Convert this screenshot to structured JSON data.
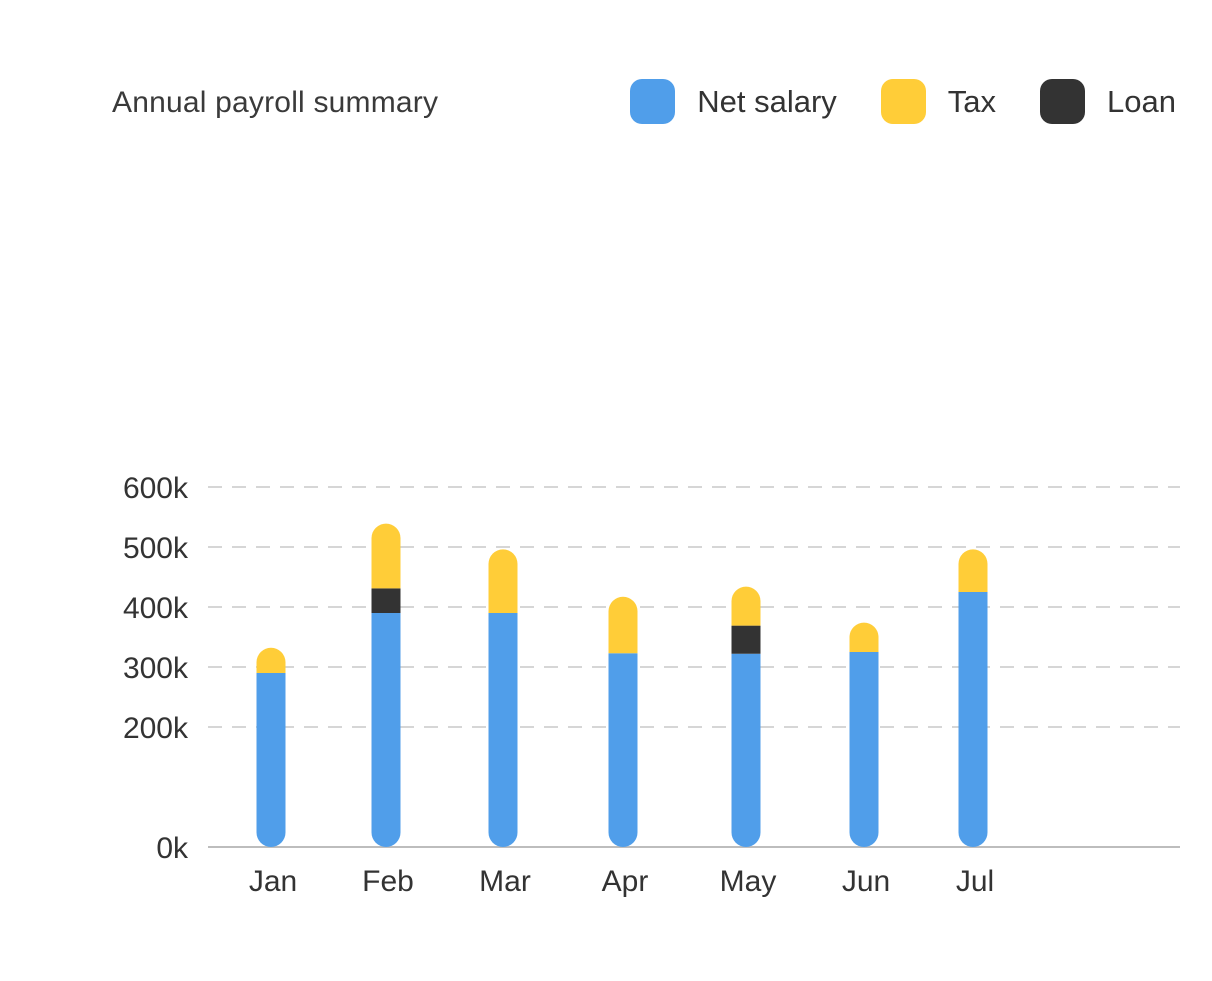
{
  "chart_data": {
    "type": "bar",
    "stacked": true,
    "title": "Annual payroll summary",
    "categories": [
      "Jan",
      "Feb",
      "Mar",
      "Apr",
      "May",
      "Jun",
      "Jul"
    ],
    "series": [
      {
        "name": "Net salary",
        "color": "#509EEA",
        "values": [
          290000,
          390000,
          390000,
          323000,
          322000,
          325000,
          425000
        ]
      },
      {
        "name": "Loan",
        "color": "#333333",
        "values": [
          0,
          41000,
          0,
          0,
          47000,
          0,
          0
        ]
      },
      {
        "name": "Tax",
        "color": "#FFCD38",
        "values": [
          42000,
          108000,
          106000,
          94000,
          65000,
          49000,
          71000
        ]
      }
    ],
    "legend_order": [
      "Net salary",
      "Tax",
      "Loan"
    ],
    "y_ticks": [
      "0k",
      "200k",
      "300k",
      "400k",
      "500k",
      "600k"
    ],
    "y_tick_values": [
      0,
      200000,
      300000,
      400000,
      500000,
      600000
    ],
    "ylim": [
      0,
      600000
    ],
    "grid": true,
    "legend": "top-right",
    "xlabel": "",
    "ylabel": ""
  }
}
